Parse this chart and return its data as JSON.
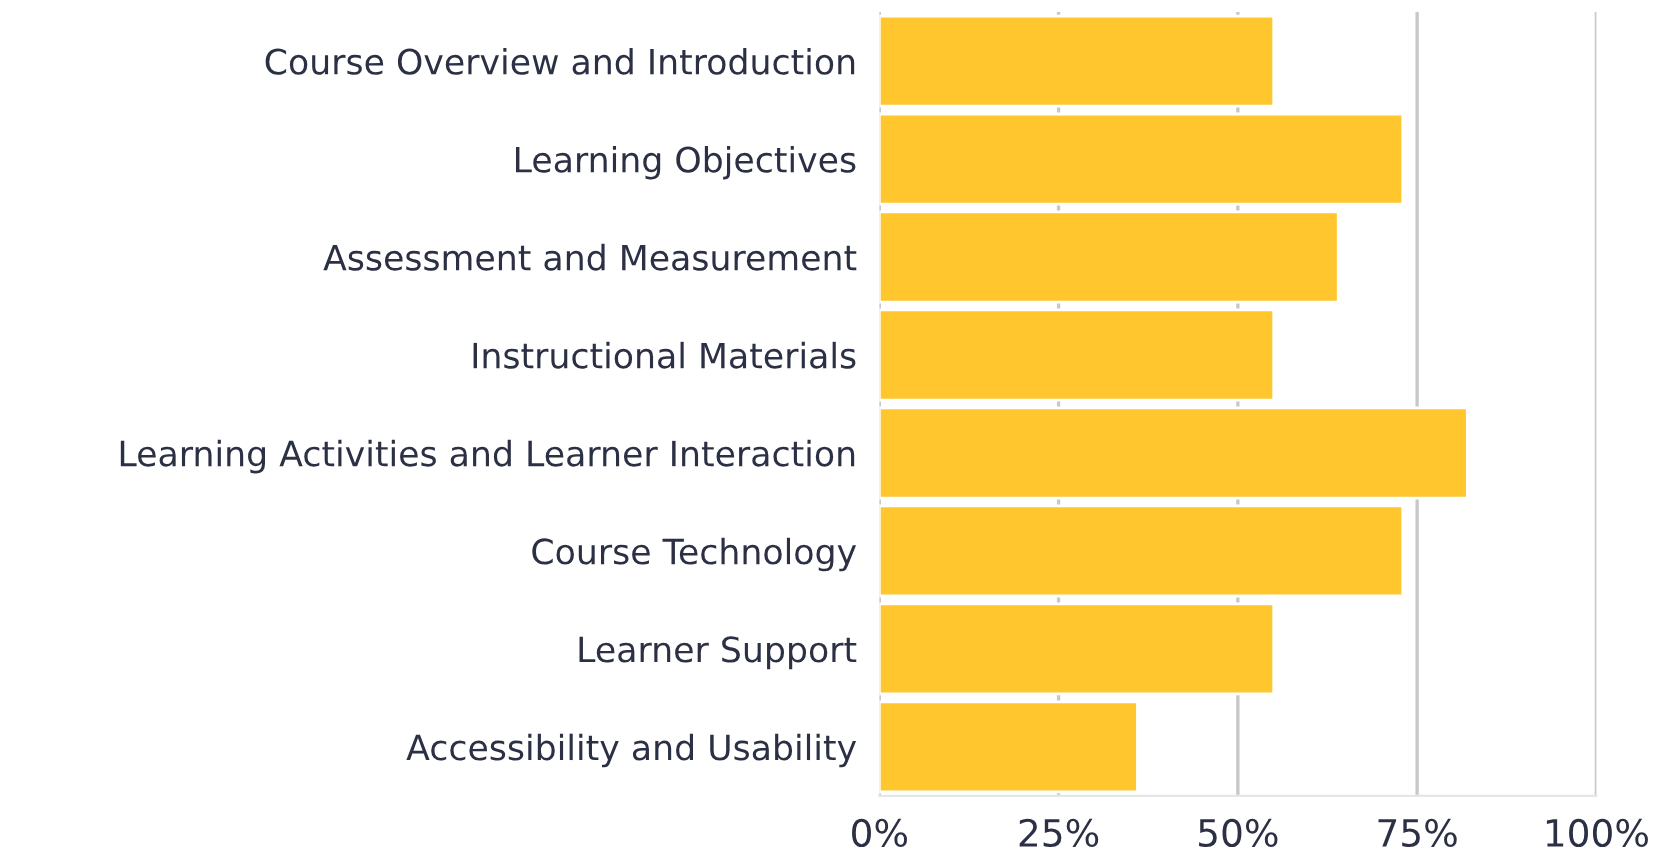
{
  "chart_data": {
    "type": "bar",
    "orientation": "horizontal",
    "categories": [
      "Course Overview and Introduction",
      "Learning Objectives",
      "Assessment and Measurement",
      "Instructional Materials",
      "Learning Activities and Learner Interaction",
      "Course Technology",
      "Learner Support",
      "Accessibility and Usability"
    ],
    "values": [
      55,
      73,
      64,
      55,
      82,
      73,
      55,
      36
    ],
    "color": "#ffc62e",
    "xlim": [
      0,
      100
    ],
    "xticks": [
      {
        "value": 0,
        "label": "0%"
      },
      {
        "value": 25,
        "label": "25%"
      },
      {
        "value": 50,
        "label": "50%"
      },
      {
        "value": 75,
        "label": "75%"
      },
      {
        "value": 100,
        "label": "100%"
      }
    ],
    "grid": "x",
    "legend": false
  }
}
